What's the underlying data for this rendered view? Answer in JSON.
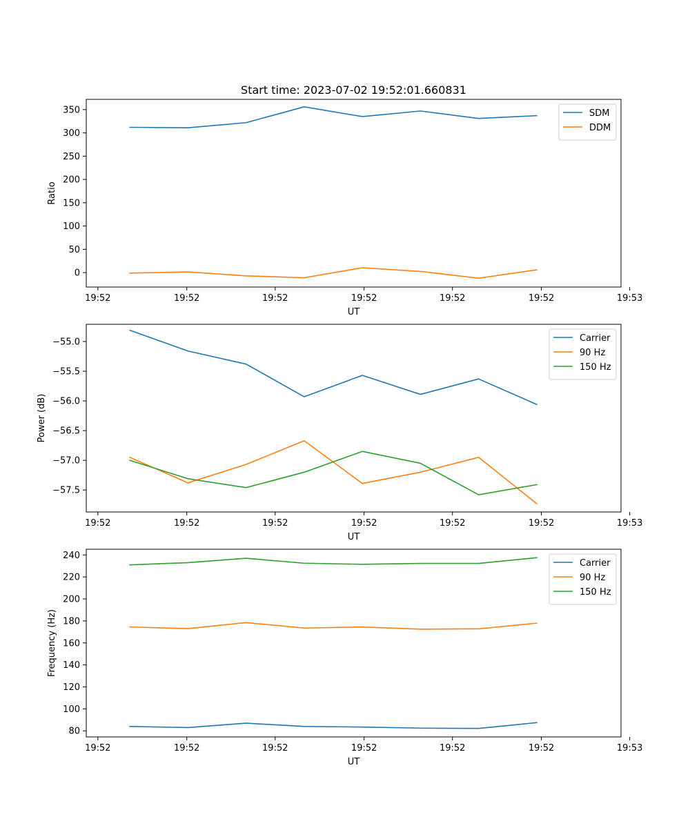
{
  "figure": {
    "title": "Start time: 2023-07-02 19:52:01.660831"
  },
  "colors": {
    "blue": "#1f77b4",
    "orange": "#ff7f0e",
    "green": "#2ca02c"
  },
  "chart_data": [
    {
      "type": "line",
      "title": "Start time: 2023-07-02 19:52:01.660831",
      "xlabel": "UT",
      "ylabel": "Ratio",
      "x": [
        1,
        2,
        3,
        4,
        5,
        6,
        7,
        8
      ],
      "xlim": [
        0.25,
        9.45
      ],
      "x_ticks": [
        0.45,
        1.98,
        3.5,
        5.03,
        6.55,
        8.08,
        9.6
      ],
      "x_tick_labels": [
        "19:52",
        "19:52",
        "19:52",
        "19:52",
        "19:52",
        "19:52",
        "19:53"
      ],
      "ylim": [
        -31,
        372
      ],
      "y_ticks": [
        0,
        50,
        100,
        150,
        200,
        250,
        300,
        350
      ],
      "y_tick_labels": [
        "0",
        "50",
        "100",
        "150",
        "200",
        "250",
        "300",
        "350"
      ],
      "legend": "top-right",
      "series": [
        {
          "name": "SDM",
          "color": "#1f77b4",
          "values": [
            312,
            311,
            322,
            356,
            335,
            347,
            331,
            337
          ]
        },
        {
          "name": "DDM",
          "color": "#ff7f0e",
          "values": [
            -1,
            1.5,
            -7,
            -11,
            10.5,
            2.5,
            -12,
            6
          ]
        }
      ]
    },
    {
      "type": "line",
      "title": "",
      "xlabel": "UT",
      "ylabel": "Power (dB)",
      "x": [
        1,
        2,
        3,
        4,
        5,
        6,
        7,
        8
      ],
      "xlim": [
        0.25,
        9.45
      ],
      "x_ticks": [
        0.45,
        1.98,
        3.5,
        5.03,
        6.55,
        8.08,
        9.6
      ],
      "x_tick_labels": [
        "19:52",
        "19:52",
        "19:52",
        "19:52",
        "19:52",
        "19:52",
        "19:53"
      ],
      "ylim": [
        -57.87,
        -54.71
      ],
      "y_ticks": [
        -55.0,
        -55.5,
        -56.0,
        -56.5,
        -57.0,
        -57.5
      ],
      "y_tick_labels": [
        "−55.0",
        "−55.5",
        "−56.0",
        "−56.5",
        "−57.0",
        "−57.5"
      ],
      "legend": "top-right",
      "series": [
        {
          "name": "Carrier",
          "color": "#1f77b4",
          "values": [
            -54.81,
            -55.16,
            -55.38,
            -55.93,
            -55.57,
            -55.89,
            -55.63,
            -56.06
          ]
        },
        {
          "name": "90 Hz",
          "color": "#ff7f0e",
          "values": [
            -56.95,
            -57.38,
            -57.07,
            -56.67,
            -57.39,
            -57.2,
            -56.95,
            -57.73
          ]
        },
        {
          "name": "150 Hz",
          "color": "#2ca02c",
          "values": [
            -57.0,
            -57.31,
            -57.46,
            -57.2,
            -56.85,
            -57.05,
            -57.58,
            -57.41
          ]
        }
      ]
    },
    {
      "type": "line",
      "title": "",
      "xlabel": "UT",
      "ylabel": "Frequency (Hz)",
      "x": [
        1,
        2,
        3,
        4,
        5,
        6,
        7,
        8
      ],
      "xlim": [
        0.25,
        9.45
      ],
      "x_ticks": [
        0.45,
        1.98,
        3.5,
        5.03,
        6.55,
        8.08,
        9.6
      ],
      "x_tick_labels": [
        "19:52",
        "19:52",
        "19:52",
        "19:52",
        "19:52",
        "19:52",
        "19:53"
      ],
      "ylim": [
        74.5,
        245.2
      ],
      "y_ticks": [
        80,
        100,
        120,
        140,
        160,
        180,
        200,
        220,
        240
      ],
      "y_tick_labels": [
        "80",
        "100",
        "120",
        "140",
        "160",
        "180",
        "200",
        "220",
        "240"
      ],
      "legend": "top-right",
      "series": [
        {
          "name": "Carrier",
          "color": "#1f77b4",
          "values": [
            84,
            83,
            87,
            84,
            83.5,
            82.5,
            82.2,
            87.5
          ]
        },
        {
          "name": "90 Hz",
          "color": "#ff7f0e",
          "values": [
            174.5,
            173,
            178.5,
            173.5,
            174.5,
            172.5,
            172.8,
            178
          ]
        },
        {
          "name": "150 Hz",
          "color": "#2ca02c",
          "values": [
            231,
            233,
            237,
            232.5,
            231.5,
            232.3,
            232.3,
            237.5
          ]
        }
      ]
    }
  ]
}
